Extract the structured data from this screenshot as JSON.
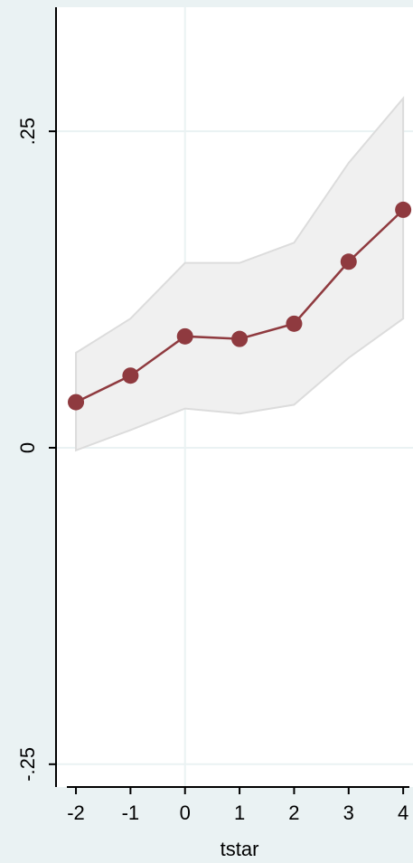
{
  "chart_data": {
    "type": "line",
    "x": [
      -2,
      -1,
      0,
      1,
      2,
      3,
      4
    ],
    "xlabel": "tstar",
    "series": [
      {
        "color": "#8f3a3f",
        "values": [
          0.036,
          0.057,
          0.088,
          0.086,
          0.098,
          0.147,
          0.188
        ],
        "ci_upper": [
          0.075,
          0.102,
          0.146,
          0.146,
          0.162,
          0.225,
          0.276
        ],
        "ci_lower": [
          -0.002,
          0.014,
          0.031,
          0.027,
          0.034,
          0.071,
          0.102
        ]
      }
    ],
    "xlim": [
      -2.365,
      4.18
    ],
    "ylim": [
      -0.268,
      0.348
    ],
    "xticks": [
      -2,
      -1,
      0,
      1,
      2,
      3,
      4
    ],
    "yticks": [
      {
        "value": -0.25,
        "label": "-.25"
      },
      0,
      {
        "value": 0.25,
        "label": ".25"
      }
    ],
    "grid": true,
    "xline": 0,
    "ci_color": "#f0f0f0"
  }
}
